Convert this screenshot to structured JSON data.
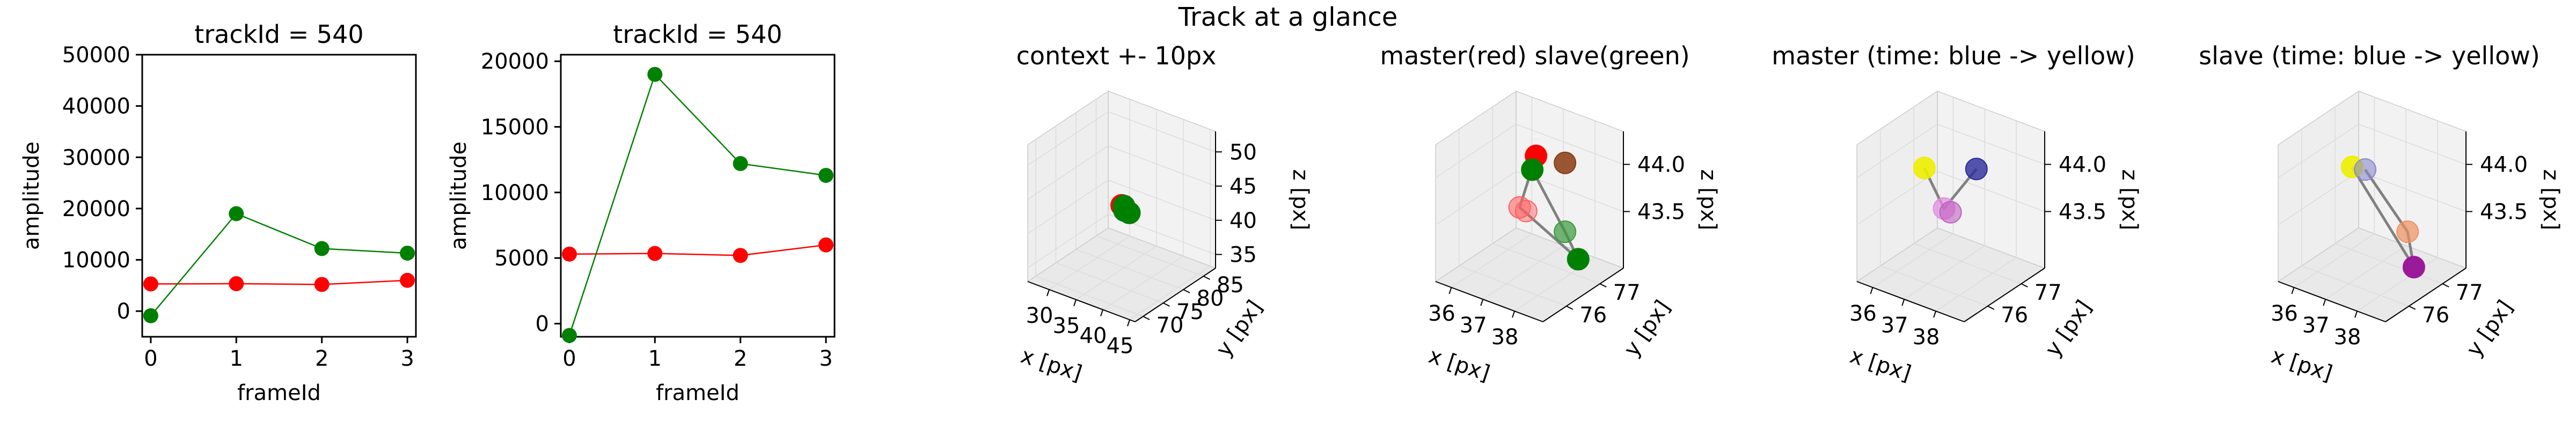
{
  "figure_title": "Track at a glance",
  "colors": {
    "master": "#ff0000",
    "slave": "#008000",
    "link": "#808080",
    "pane": "#f2f2f2",
    "grid": "#dcdcdc"
  },
  "chart_data": [
    {
      "id": "amp1",
      "type": "line",
      "title": "trackId = 540",
      "xlabel": "frameId",
      "ylabel": "amplitude",
      "xlim": [
        -0.1,
        3.1
      ],
      "ylim": [
        -5000,
        50000
      ],
      "xticks": [
        0,
        1,
        2,
        3
      ],
      "yticks": [
        0,
        10000,
        20000,
        30000,
        40000,
        50000
      ],
      "ytick_labels": [
        "0",
        "10000",
        "20000",
        "30000",
        "40000",
        "50000"
      ],
      "x": [
        0,
        1,
        2,
        3
      ],
      "series": [
        {
          "values": [
            5300,
            5350,
            5200,
            6000
          ],
          "color": "#ff0000"
        },
        {
          "values": [
            -900,
            19000,
            12200,
            11300
          ],
          "color": "#008000"
        }
      ]
    },
    {
      "id": "amp2",
      "type": "line",
      "title": "trackId = 540",
      "xlabel": "frameId",
      "ylabel": "amplitude",
      "xlim": [
        -0.1,
        3.1
      ],
      "ylim": [
        -1000,
        20500
      ],
      "xticks": [
        0,
        1,
        2,
        3
      ],
      "yticks": [
        0,
        5000,
        10000,
        15000,
        20000
      ],
      "ytick_labels": [
        "0",
        "5000",
        "10000",
        "15000",
        "20000"
      ],
      "x": [
        0,
        1,
        2,
        3
      ],
      "series": [
        {
          "values": [
            5300,
            5350,
            5200,
            6000
          ],
          "color": "#ff0000"
        },
        {
          "values": [
            -900,
            19000,
            12200,
            11300
          ],
          "color": "#008000"
        }
      ]
    },
    {
      "id": "ctx",
      "type": "scatter",
      "title": "context +- 10px",
      "xlabel": "x [px]",
      "ylabel": "y [px]",
      "zlabel": "z [px]",
      "xlim": [
        26,
        46
      ],
      "ylim": [
        68,
        88
      ],
      "zlim": [
        33,
        53
      ],
      "xticks": [
        30,
        35,
        40,
        45
      ],
      "yticks": [
        70,
        75,
        80,
        85
      ],
      "zticks": [
        35,
        40,
        45,
        50
      ],
      "points": [
        {
          "x": 37.2,
          "y": 76.4,
          "z": 44.15,
          "color": "#ff0000"
        },
        {
          "x": 37.5,
          "y": 76.6,
          "z": 44.05,
          "color": "#008000"
        },
        {
          "x": 37.8,
          "y": 76.3,
          "z": 43.6,
          "color": "#008000"
        },
        {
          "x": 38.0,
          "y": 76.8,
          "z": 43.3,
          "color": "#008000"
        },
        {
          "x": 38.2,
          "y": 77.0,
          "z": 43.1,
          "color": "#008000"
        }
      ]
    },
    {
      "id": "ms",
      "type": "scatter",
      "title": "master(red) slave(green)",
      "xlabel": "x [px]",
      "ylabel": "y [px]",
      "zlabel": "z [px]",
      "xlim": [
        35.5,
        38.9
      ],
      "ylim": [
        75.3,
        77.7
      ],
      "zlim": [
        42.9,
        44.35
      ],
      "xticks": [
        36,
        37,
        38
      ],
      "yticks": [
        76,
        77
      ],
      "zticks": [
        43.5,
        44.0
      ],
      "ztick_labels": [
        "43.5",
        "44.0"
      ],
      "lines": [
        [
          [
            37.3,
            76.6,
            44.15
          ],
          [
            37.1,
            76.3,
            43.65
          ],
          [
            38.0,
            77.2,
            43.0
          ],
          [
            37.9,
            76.9,
            43.35
          ],
          [
            37.5,
            76.3,
            44.1
          ]
        ]
      ],
      "points": [
        {
          "x": 37.3,
          "y": 76.6,
          "z": 44.15,
          "color": "#ff0000",
          "alpha": 1.0
        },
        {
          "x": 37.5,
          "y": 76.3,
          "z": 44.1,
          "color": "#008000",
          "alpha": 1.0
        },
        {
          "x": 37.9,
          "y": 76.9,
          "z": 44.08,
          "color": "#8b3a10",
          "alpha": 0.85
        },
        {
          "x": 37.1,
          "y": 76.3,
          "z": 43.65,
          "color": "#ff6060",
          "alpha": 0.55
        },
        {
          "x": 37.2,
          "y": 76.4,
          "z": 43.6,
          "color": "#ff6060",
          "alpha": 0.45
        },
        {
          "x": 37.9,
          "y": 76.9,
          "z": 43.35,
          "color": "#3a9a3a",
          "alpha": 0.7
        },
        {
          "x": 38.0,
          "y": 77.2,
          "z": 43.0,
          "color": "#008000",
          "alpha": 1.0
        }
      ]
    },
    {
      "id": "master",
      "type": "scatter",
      "title": "master (time: blue -> yellow)",
      "xlabel": "x [px]",
      "ylabel": "y [px]",
      "zlabel": "z [px]",
      "xlim": [
        35.5,
        38.9
      ],
      "ylim": [
        75.3,
        77.7
      ],
      "zlim": [
        42.9,
        44.35
      ],
      "xticks": [
        36,
        37,
        38
      ],
      "yticks": [
        76,
        77
      ],
      "zticks": [
        43.5,
        44.0
      ],
      "ztick_labels": [
        "43.5",
        "44.0"
      ],
      "lines": [
        [
          [
            37.0,
            75.9,
            44.15
          ],
          [
            37.2,
            76.3,
            43.65
          ],
          [
            37.8,
            76.7,
            44.05
          ]
        ]
      ],
      "points": [
        {
          "x": 37.0,
          "y": 75.9,
          "z": 44.15,
          "color": "#eeee00",
          "alpha": 0.9
        },
        {
          "x": 37.8,
          "y": 76.7,
          "z": 44.05,
          "color": "#2a2a9a",
          "alpha": 0.8
        },
        {
          "x": 37.2,
          "y": 76.3,
          "z": 43.65,
          "color": "#e090e0",
          "alpha": 0.75
        },
        {
          "x": 37.3,
          "y": 76.4,
          "z": 43.6,
          "color": "#c060c0",
          "alpha": 0.6
        }
      ]
    },
    {
      "id": "slave",
      "type": "scatter",
      "title": "slave (time: blue -> yellow)",
      "xlabel": "x [px]",
      "ylabel": "y [px]",
      "zlabel": "z [px]",
      "xlim": [
        35.5,
        38.9
      ],
      "ylim": [
        75.3,
        77.7
      ],
      "zlim": [
        42.9,
        44.35
      ],
      "xticks": [
        36,
        37,
        38
      ],
      "yticks": [
        76,
        77
      ],
      "zticks": [
        43.5,
        44.0
      ],
      "ztick_labels": [
        "43.5",
        "44.0"
      ],
      "lines": [
        [
          [
            37.1,
            76.0,
            44.15
          ],
          [
            38.1,
            76.9,
            43.0
          ],
          [
            37.9,
            76.9,
            43.35
          ],
          [
            37.3,
            76.2,
            44.1
          ]
        ]
      ],
      "points": [
        {
          "x": 37.1,
          "y": 76.0,
          "z": 44.15,
          "color": "#eeee00",
          "alpha": 0.9
        },
        {
          "x": 37.3,
          "y": 76.2,
          "z": 44.1,
          "color": "#8888cc",
          "alpha": 0.6
        },
        {
          "x": 37.9,
          "y": 76.9,
          "z": 43.35,
          "color": "#f09060",
          "alpha": 0.7
        },
        {
          "x": 38.1,
          "y": 76.9,
          "z": 43.0,
          "color": "#9a1a9a",
          "alpha": 1.0
        }
      ]
    }
  ]
}
